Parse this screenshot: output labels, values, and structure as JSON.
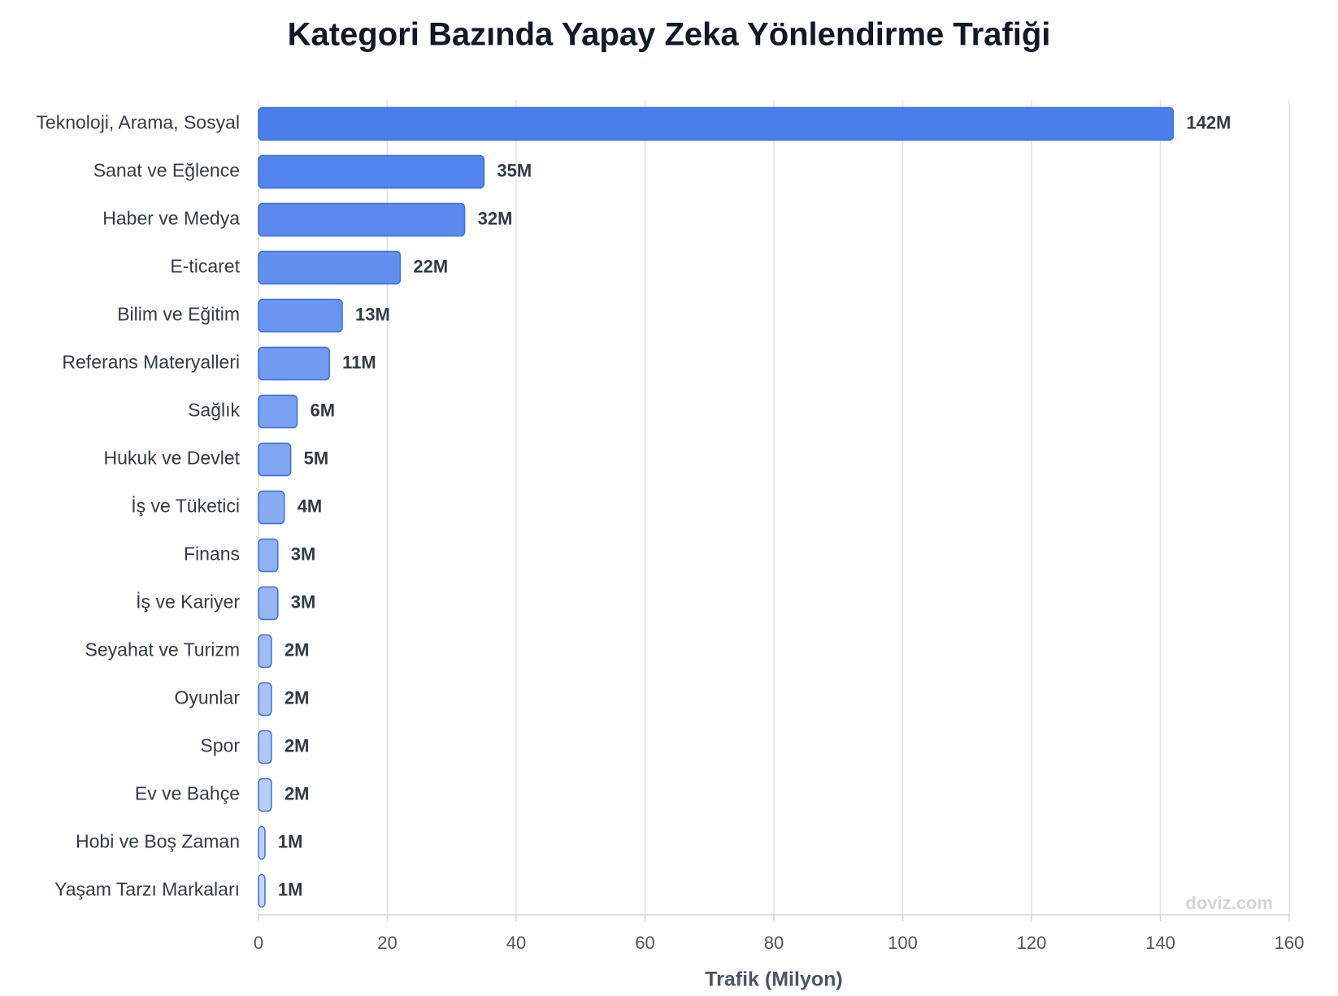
{
  "chart_data": {
    "type": "bar",
    "orientation": "horizontal",
    "title": "Kategori Bazında Yapay Zeka Yönlendirme Trafiği",
    "x_label": "Trafik (Milyon)",
    "watermark": "doviz.com",
    "categories": [
      "Teknoloji, Arama, Sosyal",
      "Sanat ve Eğlence",
      "Haber ve Medya",
      "E-ticaret",
      "Bilim ve Eğitim",
      "Referans Materyalleri",
      "Sağlık",
      "Hukuk ve Devlet",
      "İş ve Tüketici",
      "Finans",
      "İş ve Kariyer",
      "Seyahat ve Turizm",
      "Oyunlar",
      "Spor",
      "Ev ve Bahçe",
      "Hobi ve Boş Zaman",
      "Yaşam Tarzı Markaları"
    ],
    "values": [
      142,
      35,
      32,
      22,
      13,
      11,
      6,
      5,
      4,
      3,
      3,
      2,
      2,
      2,
      2,
      1,
      1
    ],
    "value_labels": [
      "142M",
      "35M",
      "32M",
      "22M",
      "13M",
      "11M",
      "6M",
      "5M",
      "4M",
      "3M",
      "3M",
      "2M",
      "2M",
      "2M",
      "2M",
      "1M",
      "1M"
    ],
    "colors": [
      "#4a7fec",
      "#5285ed",
      "#5a8aee",
      "#6290ef",
      "#6a96f0",
      "#729bf0",
      "#79a0f1",
      "#81a6f2",
      "#89abf3",
      "#91b1f3",
      "#99b6f4",
      "#a1bcf5",
      "#a9c2f6",
      "#b1c7f7",
      "#b8cdf8",
      "#c0d2f9",
      "#c8d8fa"
    ],
    "stroke_color": "#3b6fe0",
    "xlim": [
      0,
      160
    ],
    "xticks": [
      0,
      20,
      40,
      60,
      80,
      100,
      120,
      140,
      160
    ],
    "grid": true
  }
}
